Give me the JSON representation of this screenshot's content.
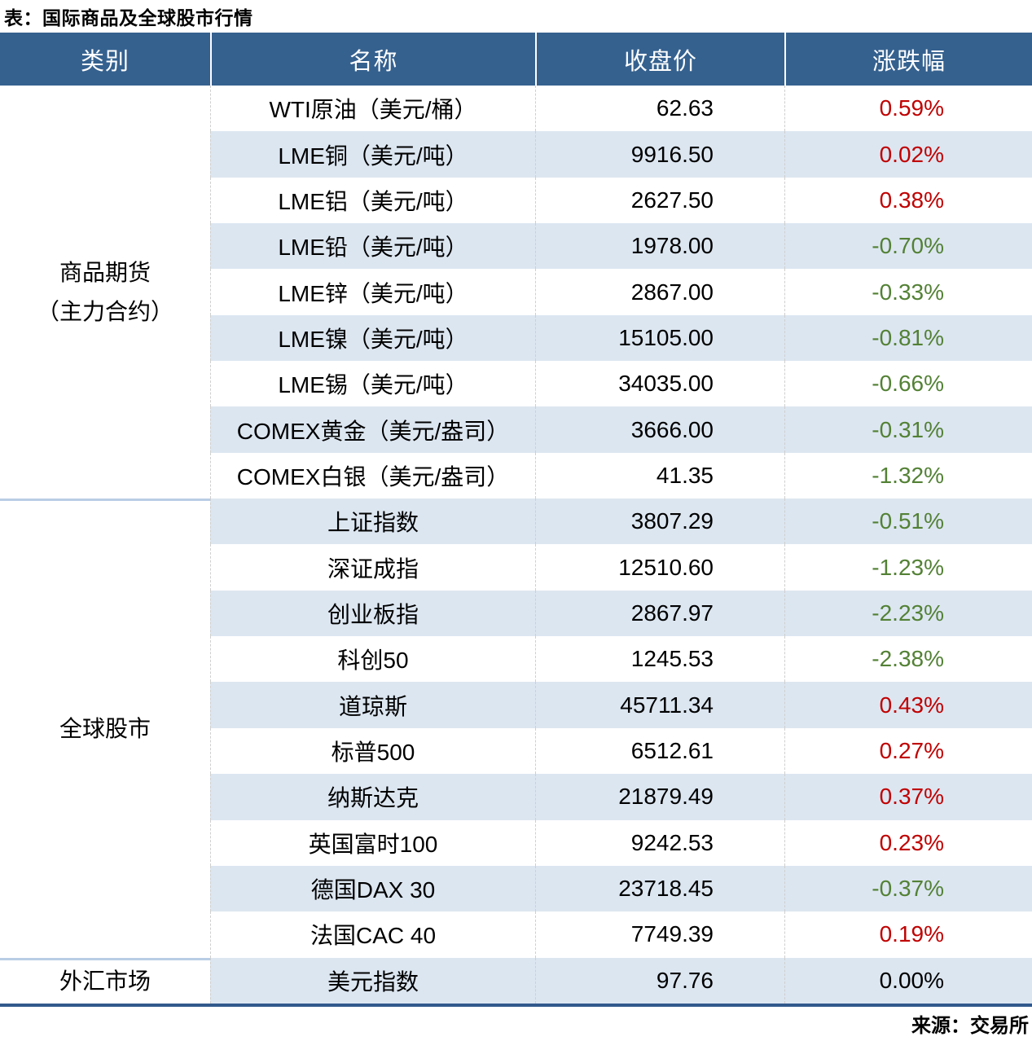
{
  "title": "表：国际商品及全球股市行情",
  "source": "来源：交易所",
  "columns": [
    "类别",
    "名称",
    "收盘价",
    "涨跌幅"
  ],
  "colors": {
    "header_bg": "#35618F",
    "row_alt_bg": "#DCE6F1",
    "up": "#C00000",
    "down": "#538135",
    "flat": "#000000",
    "group_divider": "#B9CDE5",
    "bottom_border": "#31598C"
  },
  "groups": [
    {
      "category": "商品期货（主力合约）",
      "category_lines": [
        "商品期货",
        "（主力合约）"
      ],
      "rows": [
        {
          "name": "WTI原油（美元/桶）",
          "close": "62.63",
          "change": "0.59%",
          "dir": "up"
        },
        {
          "name": "LME铜（美元/吨）",
          "close": "9916.50",
          "change": "0.02%",
          "dir": "up"
        },
        {
          "name": "LME铝（美元/吨）",
          "close": "2627.50",
          "change": "0.38%",
          "dir": "up"
        },
        {
          "name": "LME铅（美元/吨）",
          "close": "1978.00",
          "change": "-0.70%",
          "dir": "down"
        },
        {
          "name": "LME锌（美元/吨）",
          "close": "2867.00",
          "change": "-0.33%",
          "dir": "down"
        },
        {
          "name": "LME镍（美元/吨）",
          "close": "15105.00",
          "change": "-0.81%",
          "dir": "down"
        },
        {
          "name": "LME锡（美元/吨）",
          "close": "34035.00",
          "change": "-0.66%",
          "dir": "down"
        },
        {
          "name": "COMEX黄金（美元/盎司）",
          "close": "3666.00",
          "change": "-0.31%",
          "dir": "down"
        },
        {
          "name": "COMEX白银（美元/盎司）",
          "close": "41.35",
          "change": "-1.32%",
          "dir": "down"
        }
      ]
    },
    {
      "category": "全球股市",
      "category_lines": [
        "全球股市"
      ],
      "rows": [
        {
          "name": "上证指数",
          "close": "3807.29",
          "change": "-0.51%",
          "dir": "down"
        },
        {
          "name": "深证成指",
          "close": "12510.60",
          "change": "-1.23%",
          "dir": "down"
        },
        {
          "name": "创业板指",
          "close": "2867.97",
          "change": "-2.23%",
          "dir": "down"
        },
        {
          "name": "科创50",
          "close": "1245.53",
          "change": "-2.38%",
          "dir": "down"
        },
        {
          "name": "道琼斯",
          "close": "45711.34",
          "change": "0.43%",
          "dir": "up"
        },
        {
          "name": "标普500",
          "close": "6512.61",
          "change": "0.27%",
          "dir": "up"
        },
        {
          "name": "纳斯达克",
          "close": "21879.49",
          "change": "0.37%",
          "dir": "up"
        },
        {
          "name": "英国富时100",
          "close": "9242.53",
          "change": "0.23%",
          "dir": "up"
        },
        {
          "name": "德国DAX 30",
          "close": "23718.45",
          "change": "-0.37%",
          "dir": "down"
        },
        {
          "name": "法国CAC 40",
          "close": "7749.39",
          "change": "0.19%",
          "dir": "up"
        }
      ]
    },
    {
      "category": "外汇市场",
      "category_lines": [
        "外汇市场"
      ],
      "rows": [
        {
          "name": "美元指数",
          "close": "97.76",
          "change": "0.00%",
          "dir": "flat"
        }
      ]
    }
  ]
}
